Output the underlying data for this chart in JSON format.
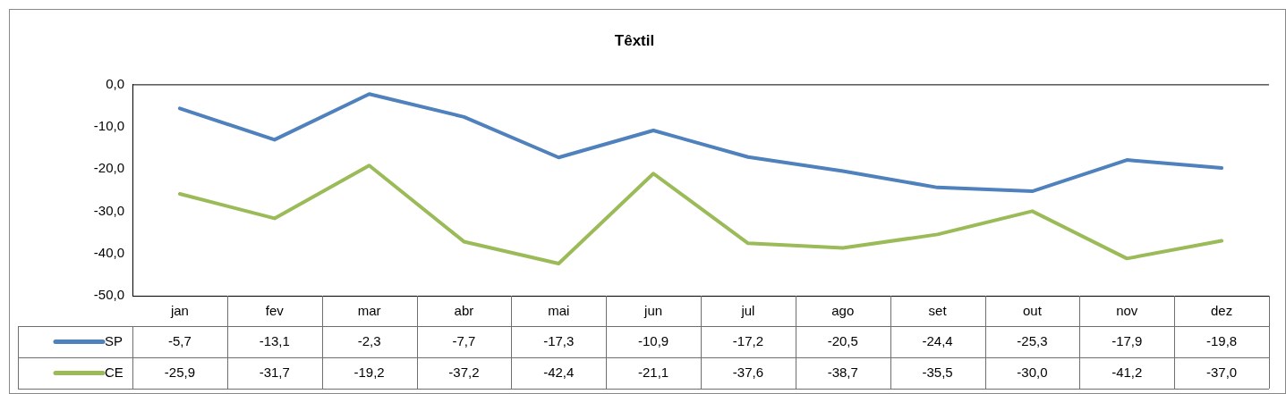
{
  "chart_data": {
    "type": "line",
    "title": "Têxtil",
    "categories": [
      "jan",
      "fev",
      "mar",
      "abr",
      "mai",
      "jun",
      "jul",
      "ago",
      "set",
      "out",
      "nov",
      "dez"
    ],
    "series": [
      {
        "name": "SP",
        "color": "#4f81bd",
        "values": [
          -5.7,
          -13.1,
          -2.3,
          -7.7,
          -17.3,
          -10.9,
          -17.2,
          -20.5,
          -24.4,
          -25.3,
          -17.9,
          -19.8
        ],
        "value_labels": [
          "-5,7",
          "-13,1",
          "-2,3",
          "-7,7",
          "-17,3",
          "-10,9",
          "-17,2",
          "-20,5",
          "-24,4",
          "-25,3",
          "-17,9",
          "-19,8"
        ]
      },
      {
        "name": "CE",
        "color": "#9bbb59",
        "values": [
          -25.9,
          -31.7,
          -19.2,
          -37.2,
          -42.4,
          -21.1,
          -37.6,
          -38.7,
          -35.5,
          -30.0,
          -41.2,
          -37.0
        ],
        "value_labels": [
          "-25,9",
          "-31,7",
          "-19,2",
          "-37,2",
          "-42,4",
          "-21,1",
          "-37,6",
          "-38,7",
          "-35,5",
          "-30,0",
          "-41,2",
          "-37,0"
        ]
      }
    ],
    "ylim": [
      -50,
      0
    ],
    "yticks": [
      {
        "value": -50,
        "label": "-50,0"
      },
      {
        "value": -40,
        "label": "-40,0"
      },
      {
        "value": -30,
        "label": "-30,0"
      },
      {
        "value": -20,
        "label": "-20,0"
      },
      {
        "value": -10,
        "label": "-10,0"
      },
      {
        "value": 0,
        "label": "0,0"
      }
    ],
    "grid": false,
    "legend": "bottom",
    "marker": "none",
    "line_style": "solid"
  }
}
